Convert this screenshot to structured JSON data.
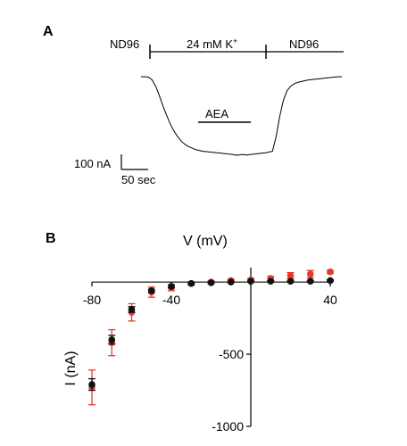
{
  "chart_data": [
    {
      "type": "line",
      "panel_label": "A",
      "segments": [
        "ND96",
        "24 mM K",
        "ND96"
      ],
      "segment_superscript": "+",
      "drug_label": "AEA",
      "scale_current": "100 nA",
      "scale_time": "50 sec",
      "trace_samples": [
        0,
        0,
        0.005,
        0.04,
        0.12,
        0.24,
        0.37,
        0.49,
        0.6,
        0.69,
        0.76,
        0.82,
        0.86,
        0.89,
        0.91,
        0.93,
        0.94,
        0.95,
        0.955,
        0.96,
        0.965,
        0.97,
        0.975,
        0.98,
        0.985,
        0.99,
        1,
        0.995,
        0.99,
        1,
        0.99,
        0.985,
        0.98,
        0.975,
        0.97,
        0.96,
        0.95,
        0.76,
        0.5,
        0.3,
        0.18,
        0.12,
        0.09,
        0.07,
        0.06,
        0.05,
        0.04,
        0.035,
        0.03,
        0.025,
        0.02,
        0.015,
        0.01,
        0.005,
        0,
        0
      ]
    },
    {
      "type": "scatter",
      "panel_label": "B",
      "xlabel": "V (mV)",
      "ylabel": "I (nA)",
      "xlim": [
        -80,
        40
      ],
      "ylim": [
        -1000,
        100
      ],
      "xticks": [
        -80,
        -40,
        0,
        40
      ],
      "xtick_labels": [
        "-80",
        "-40",
        "0",
        "40"
      ],
      "yticks": [
        -500,
        -1000
      ],
      "ytick_labels": [
        "-500",
        "-1000"
      ],
      "series": [
        {
          "color": "#e8392b",
          "x": [
            -80,
            -70,
            -60,
            -50,
            -40,
            -30,
            -20,
            -10,
            0,
            10,
            20,
            30,
            40
          ],
          "y": [
            -730,
            -420,
            -210,
            -70,
            -40,
            -10,
            0,
            10,
            15,
            25,
            45,
            55,
            70
          ],
          "err": [
            120,
            90,
            60,
            35,
            20,
            12,
            8,
            8,
            10,
            15,
            20,
            25,
            10
          ]
        },
        {
          "color": "#111111",
          "x": [
            -80,
            -70,
            -60,
            -50,
            -40,
            -30,
            -20,
            -10,
            0,
            10,
            20,
            30,
            40
          ],
          "y": [
            -710,
            -400,
            -190,
            -60,
            -30,
            -10,
            -5,
            0,
            5,
            5,
            5,
            5,
            10
          ],
          "err": [
            40,
            30,
            20,
            10,
            10,
            5,
            5,
            5,
            5,
            5,
            5,
            5,
            5
          ]
        }
      ]
    }
  ]
}
